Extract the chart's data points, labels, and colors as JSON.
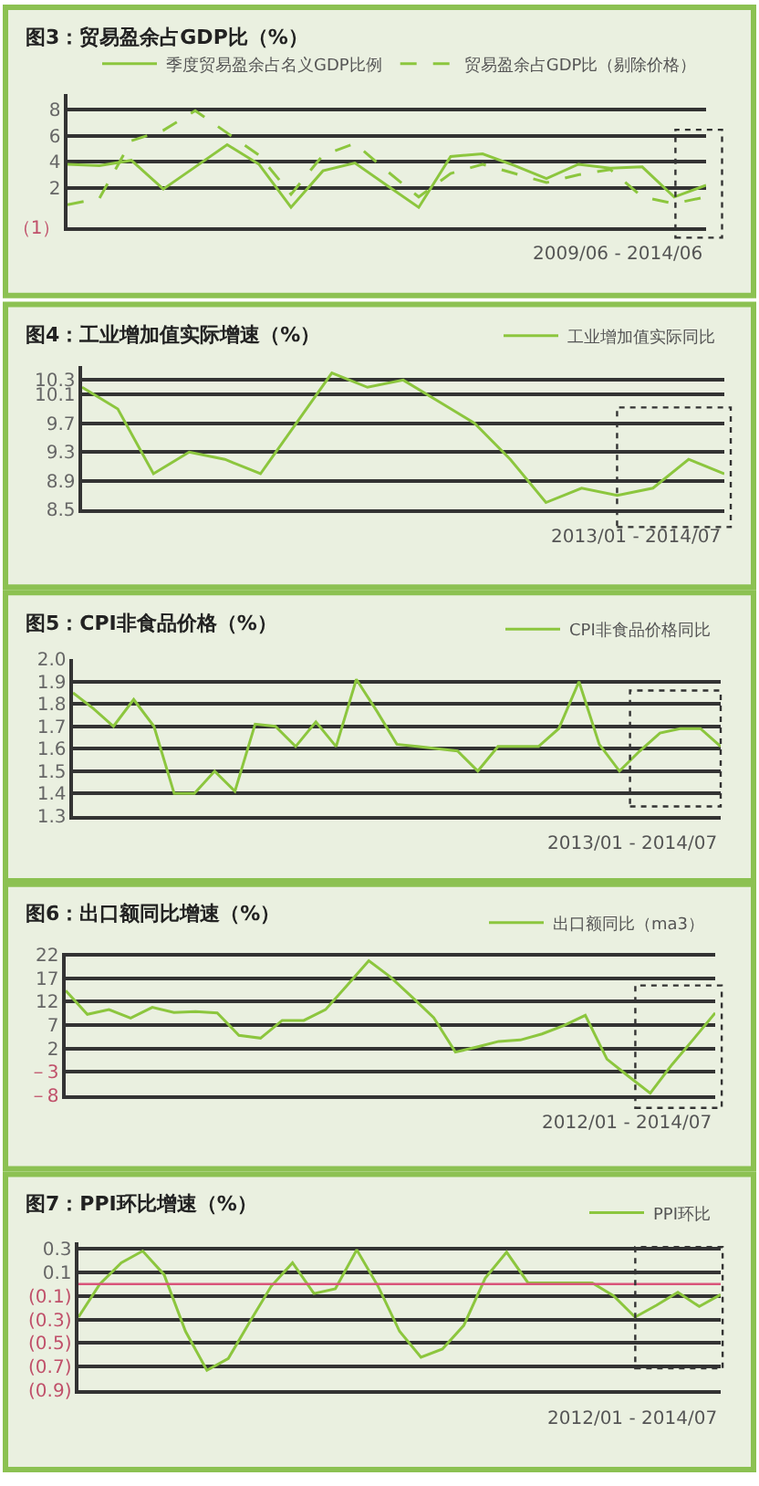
{
  "chart_data": [
    {
      "type": "line",
      "title": "图3：贸易盈余占GDP比（%）",
      "legend": "top right",
      "grid": "y",
      "tick_labels": "y",
      "categories": [
        null,
        null,
        null,
        null,
        null,
        null,
        null,
        null,
        null,
        null,
        null,
        null,
        null,
        null,
        null,
        null,
        null,
        null,
        null,
        null,
        null
      ],
      "ylim": [
        -1,
        9.2
      ],
      "yticks": [
        {
          "value": -1,
          "label": "（1）"
        },
        2,
        4,
        6,
        8
      ],
      "series": [
        {
          "name": "季度贸易盈余占名义GDP比例",
          "color": "#8cc63e",
          "line_style": "solid",
          "values": [
            3.8,
            3.7,
            4.1,
            1.9,
            3.6,
            5.3,
            3.8,
            0.5,
            3.3,
            3.9,
            2.2,
            0.5,
            4.4,
            4.6,
            3.7,
            2.7,
            3.8,
            3.5,
            3.6,
            1.3,
            2.2
          ]
        },
        {
          "name": "贸易盈余占GDP比（剔除价格）",
          "color": "#8cc63e",
          "line_style": "dashed",
          "values": [
            0.7,
            1.2,
            5.6,
            6.4,
            7.9,
            6.2,
            4.5,
            1.5,
            4.5,
            5.4,
            3.3,
            1.3,
            3.1,
            3.8,
            3.1,
            2.4,
            3.0,
            3.4,
            1.3,
            0.8,
            1.3
          ]
        }
      ],
      "annotations": [
        "2009/06 - 2014/06"
      ]
    },
    {
      "type": "line",
      "title": "图4：工业增加值实际增速（%）",
      "legend": "top right",
      "grid": "y",
      "tick_labels": "y",
      "categories": [
        null,
        null,
        null,
        null,
        null,
        null,
        null,
        null,
        null,
        null,
        null,
        null,
        null,
        null,
        null,
        null,
        null,
        null,
        null
      ],
      "ylim": [
        8.5,
        10.5
      ],
      "yticks": [
        8.5,
        8.9,
        9.3,
        9.7,
        10.1,
        10.3
      ],
      "series": [
        {
          "name": "工业增加值实际同比",
          "color": "#8cc63e",
          "values": [
            10.2,
            9.9,
            9.0,
            9.3,
            9.2,
            9.0,
            9.7,
            10.4,
            10.2,
            10.3,
            10.0,
            9.7,
            9.2,
            8.6,
            8.8,
            8.7,
            8.8,
            9.2,
            9.0
          ]
        }
      ],
      "annotations": [
        "2013/01 - 2014/07"
      ]
    },
    {
      "type": "line",
      "title": "图5：CPI非食品价格（%）",
      "legend": "top right",
      "grid": "y",
      "tick_labels": "y",
      "categories": [
        null,
        null,
        null,
        null,
        null,
        null,
        null,
        null,
        null,
        null,
        null,
        null,
        null,
        null,
        null,
        null,
        null,
        null,
        null,
        null,
        null,
        null,
        null,
        null,
        null,
        null,
        null,
        null,
        null,
        null,
        null,
        null,
        null
      ],
      "ylim": [
        1.3,
        2.0
      ],
      "yticks": [
        1.3,
        1.4,
        1.5,
        1.6,
        1.7,
        1.8,
        1.9,
        {
          "value": 2.0,
          "label": "2.0"
        }
      ],
      "series": [
        {
          "name": "CPI非食品价格同比",
          "color": "#8cc63e",
          "values": [
            1.85,
            1.78,
            1.7,
            1.82,
            1.7,
            1.4,
            1.4,
            1.5,
            1.41,
            1.71,
            1.7,
            1.61,
            1.72,
            1.61,
            1.91,
            1.77,
            1.62,
            1.61,
            1.6,
            1.59,
            1.5,
            1.61,
            1.61,
            1.61,
            1.69,
            1.9,
            1.62,
            1.5,
            1.59,
            1.67,
            1.69,
            1.69,
            1.61
          ]
        }
      ],
      "annotations": [
        "2013/01 - 2014/07"
      ]
    },
    {
      "type": "line",
      "title": "图6：出口额同比增速（%）",
      "legend": "top right",
      "grid": "y",
      "tick_labels": "y",
      "categories": [
        null,
        null,
        null,
        null,
        null,
        null,
        null,
        null,
        null,
        null,
        null,
        null,
        null,
        null,
        null,
        null,
        null,
        null,
        null,
        null,
        null,
        null,
        null,
        null,
        null,
        null,
        null,
        null,
        null,
        null,
        null
      ],
      "ylim": [
        -8,
        22.5
      ],
      "yticks": [
        {
          "value": -8,
          "label": "－8"
        },
        {
          "value": -3,
          "label": "－3"
        },
        2,
        7,
        12,
        17,
        22
      ],
      "series": [
        {
          "name": "出口额同比（ma3）",
          "color": "#8cc63e",
          "values": [
            14.4,
            9.3,
            10.3,
            8.5,
            10.8,
            9.7,
            9.9,
            9.6,
            4.8,
            4.2,
            8.0,
            8.0,
            10.3,
            15.5,
            20.8,
            17.3,
            13.0,
            8.6,
            1.2,
            2.3,
            3.5,
            3.8,
            5.1,
            6.9,
            9.1,
            -0.3,
            -4.0,
            -7.6,
            -1.5,
            4.0,
            9.6
          ]
        }
      ],
      "annotations": [
        "2012/01 - 2014/07"
      ]
    },
    {
      "type": "line",
      "title": "图7：PPI环比增速（%）",
      "legend": "top right",
      "grid": "y",
      "tick_labels": "y",
      "categories": [
        null,
        null,
        null,
        null,
        null,
        null,
        null,
        null,
        null,
        null,
        null,
        null,
        null,
        null,
        null,
        null,
        null,
        null,
        null,
        null,
        null,
        null,
        null,
        null,
        null,
        null,
        null,
        null,
        null,
        null,
        null
      ],
      "ylim": [
        -0.9,
        0.35
      ],
      "yticks": [
        {
          "value": -0.9,
          "label": "(0.9)"
        },
        {
          "value": -0.7,
          "label": "(0.7)"
        },
        {
          "value": -0.5,
          "label": "(0.5)"
        },
        {
          "value": -0.3,
          "label": "(0.3)"
        },
        {
          "value": -0.1,
          "label": "(0.1)"
        },
        0.1,
        0.3
      ],
      "series": [
        {
          "name": "PPI环比",
          "color": "#8cc63e",
          "values": [
            -0.28,
            0.0,
            0.18,
            0.28,
            0.08,
            -0.4,
            -0.73,
            -0.63,
            -0.32,
            -0.02,
            0.18,
            -0.08,
            -0.04,
            0.29,
            -0.02,
            -0.4,
            -0.62,
            -0.55,
            -0.35,
            0.05,
            0.27,
            0.01,
            0.01,
            0.01,
            0.01,
            -0.1,
            -0.28,
            -0.18,
            -0.07,
            -0.19,
            -0.09
          ]
        }
      ],
      "ref_lines": [
        {
          "axis": "y",
          "value": 0,
          "color": "#d9547a",
          "line_style": "solid"
        }
      ],
      "annotations": [
        "2012/01 - 2014/07"
      ]
    }
  ]
}
